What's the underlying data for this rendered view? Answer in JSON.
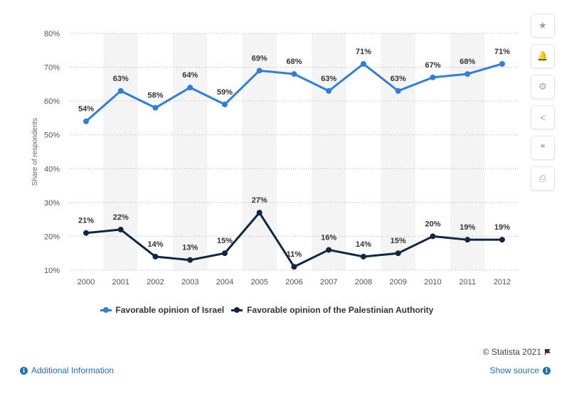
{
  "chart_data": {
    "type": "line",
    "title": "",
    "xlabel": "",
    "ylabel": "Share of respondents",
    "categories": [
      "2000",
      "2001",
      "2002",
      "2003",
      "2004",
      "2005",
      "2006",
      "2007",
      "2008",
      "2009",
      "2010",
      "2011",
      "2012"
    ],
    "ylim": [
      10,
      80
    ],
    "yticks": [
      "10%",
      "20%",
      "30%",
      "40%",
      "50%",
      "60%",
      "70%",
      "80%"
    ],
    "grid": true,
    "legend_position": "bottom",
    "series": [
      {
        "name": "Favorable opinion of Israel",
        "color": "#2f7ed8",
        "values": [
          54,
          63,
          58,
          64,
          59,
          69,
          68,
          63,
          71,
          63,
          67,
          68,
          71
        ]
      },
      {
        "name": "Favorable opinion of the Palestinian Authority",
        "color": "#0f2740",
        "values": [
          21,
          22,
          14,
          13,
          15,
          27,
          11,
          16,
          14,
          15,
          20,
          19,
          19
        ]
      }
    ]
  },
  "toolbar": {
    "icons": [
      "star-icon",
      "bell-icon",
      "gear-icon",
      "share-icon",
      "quote-icon",
      "print-icon"
    ],
    "glyphs": [
      "★",
      "🔔",
      "⚙",
      "<",
      "❝",
      "⎙"
    ]
  },
  "footer": {
    "credit": "© Statista 2021",
    "additional_info": "Additional Information",
    "show_source": "Show source"
  }
}
